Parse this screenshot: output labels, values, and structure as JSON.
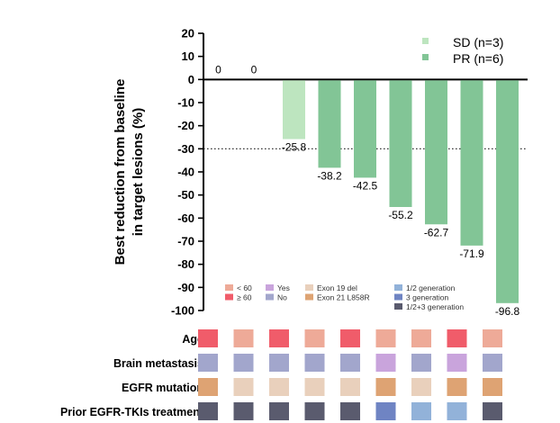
{
  "chart_data": {
    "type": "bar",
    "ylabel": "Best reduction from baseline in target lesions (%)",
    "ylabel_lines": [
      "Best reduction from baseline",
      "in target lesions (%)"
    ],
    "ylim": [
      -100,
      20
    ],
    "yticks": [
      20,
      10,
      0,
      -10,
      -20,
      -30,
      -40,
      -50,
      -60,
      -70,
      -80,
      -90,
      -100
    ],
    "reference_line": -30,
    "values": [
      0,
      0,
      -25.8,
      -38.2,
      -42.5,
      -55.2,
      -62.7,
      -71.9,
      -96.8
    ],
    "value_labels": [
      "0",
      "0",
      "-25.8",
      "-38.2",
      "-42.5",
      "-55.2",
      "-62.7",
      "-71.9",
      "-96.8"
    ],
    "response": [
      "none",
      "none",
      "SD",
      "PR",
      "PR",
      "PR",
      "PR",
      "PR",
      "PR"
    ],
    "series": [
      {
        "key": "SD",
        "name": "SD (n=3)",
        "color": "#bde5bf"
      },
      {
        "key": "PR",
        "name": "PR (n=6)",
        "color": "#82c596"
      }
    ]
  },
  "annotation_legend": [
    {
      "label": "< 60",
      "color": "#eeaa98"
    },
    {
      "label": "≥ 60",
      "color": "#f05c6a"
    },
    {
      "label": "Yes",
      "color": "#c9a4dc"
    },
    {
      "label": "No",
      "color": "#a2a6cc"
    },
    {
      "label": "Exon 19 del",
      "color": "#e9d0bc"
    },
    {
      "label": "Exon 21 L858R",
      "color": "#dea373"
    },
    {
      "label": "1/2 generation",
      "color": "#92b2d9"
    },
    {
      "label": "3 generation",
      "color": "#6f84c3"
    },
    {
      "label": "1/2+3 generation",
      "color": "#5a5b6e"
    }
  ],
  "annotation_rows": [
    {
      "label": "Age",
      "cells": [
        "≥ 60",
        "< 60",
        "≥ 60",
        "< 60",
        "≥ 60",
        "< 60",
        "< 60",
        "≥ 60",
        "< 60"
      ]
    },
    {
      "label": "Brain metastasis",
      "cells": [
        "No",
        "No",
        "No",
        "No",
        "No",
        "Yes",
        "No",
        "Yes",
        "No"
      ]
    },
    {
      "label": "EGFR mutation",
      "cells": [
        "Exon 21 L858R",
        "Exon 19 del",
        "Exon 19 del",
        "Exon 19 del",
        "Exon 19 del",
        "Exon 21 L858R",
        "Exon 19 del",
        "Exon 21 L858R",
        "Exon 21 L858R"
      ]
    },
    {
      "label": "Prior EGFR-TKIs treatment",
      "cells": [
        "1/2+3 generation",
        "1/2+3 generation",
        "1/2+3 generation",
        "1/2+3 generation",
        "1/2+3 generation",
        "3 generation",
        "1/2 generation",
        "1/2 generation",
        "1/2+3 generation"
      ]
    }
  ]
}
